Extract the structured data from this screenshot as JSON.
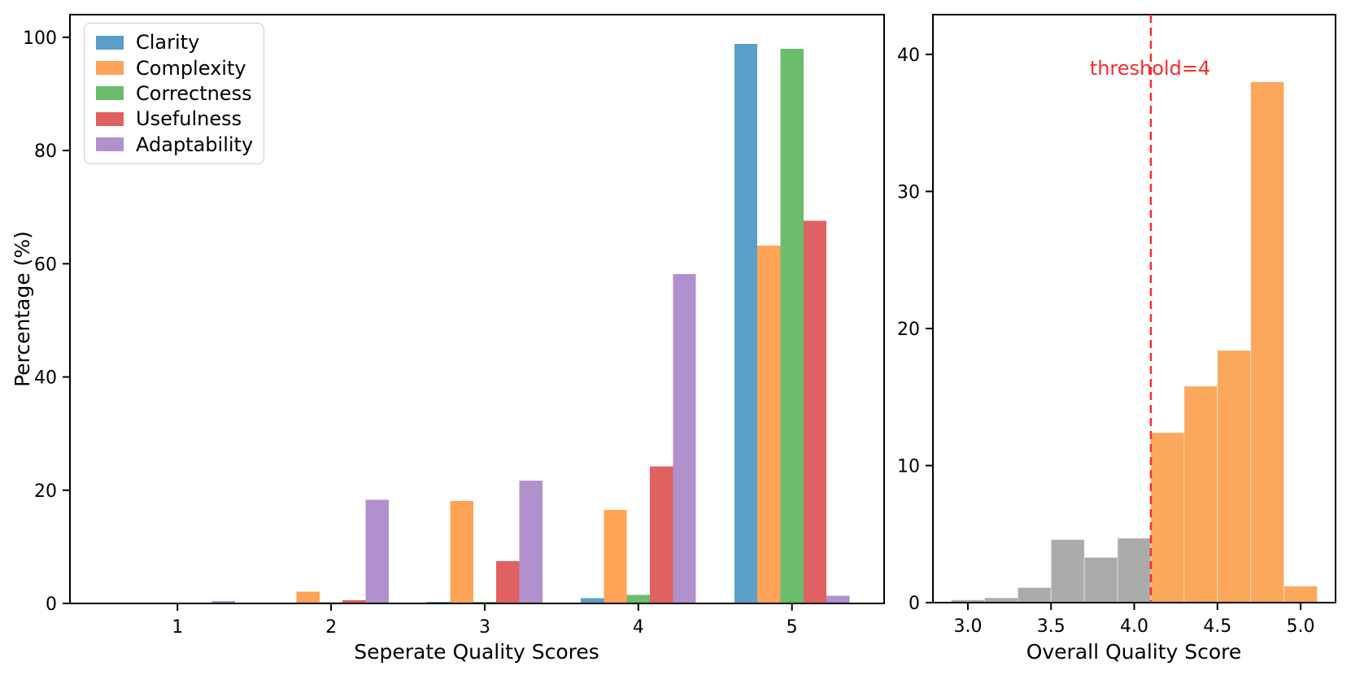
{
  "figure": {
    "background": "#ffffff",
    "spine_color": "#000000"
  },
  "chart_data": [
    {
      "type": "bar",
      "title": "",
      "xlabel": "Seperate Quality Scores",
      "ylabel": "Percentage (%)",
      "categories": [
        1,
        2,
        3,
        4,
        5
      ],
      "series": [
        {
          "name": "Clarity",
          "color": "#5B9EC9",
          "values": [
            0,
            0,
            0.3,
            0.9,
            98.8
          ]
        },
        {
          "name": "Complexity",
          "color": "#FFA356",
          "values": [
            0,
            2.1,
            18.1,
            16.5,
            63.2
          ]
        },
        {
          "name": "Correctness",
          "color": "#6BBC6B",
          "values": [
            0,
            0.2,
            0.3,
            1.5,
            98.0
          ]
        },
        {
          "name": "Usefulness",
          "color": "#E06162",
          "values": [
            0,
            0.6,
            7.5,
            24.2,
            67.6
          ]
        },
        {
          "name": "Adaptability",
          "color": "#B190CE",
          "values": [
            0.4,
            18.3,
            21.7,
            58.2,
            1.4
          ]
        }
      ],
      "bar_width": 0.15,
      "xticks": [
        1,
        2,
        3,
        4,
        5
      ],
      "xtick_labels": [
        "1",
        "2",
        "3",
        "4",
        "5"
      ],
      "yticks": [
        0,
        20,
        40,
        60,
        80,
        100
      ],
      "ytick_labels": [
        "0",
        "20",
        "40",
        "60",
        "80",
        "100"
      ],
      "xlim": [
        0.3,
        5.6
      ],
      "ylim": [
        0,
        104
      ],
      "grid": false,
      "legend_position": "upper left"
    },
    {
      "type": "histogram",
      "title": "",
      "xlabel": "Overall Quality Score",
      "ylabel": "",
      "bin_edges": [
        2.9,
        3.1,
        3.3,
        3.5,
        3.7,
        3.9,
        4.1,
        4.3,
        4.5,
        4.7,
        4.9,
        5.1
      ],
      "values": [
        0.2,
        0.35,
        1.1,
        4.6,
        3.3,
        4.7,
        12.4,
        15.8,
        18.4,
        38.0,
        1.2
      ],
      "color_below_threshold": "#ABABAB",
      "color_above_threshold": "#FBA75C",
      "threshold": {
        "x": 4.1,
        "label": "threshold=4",
        "color": "#FB2B2B",
        "line_style": "dashed"
      },
      "xticks": [
        3.0,
        3.5,
        4.0,
        4.5,
        5.0
      ],
      "xtick_labels": [
        "3.0",
        "3.5",
        "4.0",
        "4.5",
        "5.0"
      ],
      "yticks": [
        0,
        10,
        20,
        30,
        40
      ],
      "ytick_labels": [
        "0",
        "10",
        "20",
        "30",
        "40"
      ],
      "xlim": [
        2.79,
        5.21
      ],
      "ylim": [
        0,
        42.9
      ],
      "grid": false
    }
  ]
}
